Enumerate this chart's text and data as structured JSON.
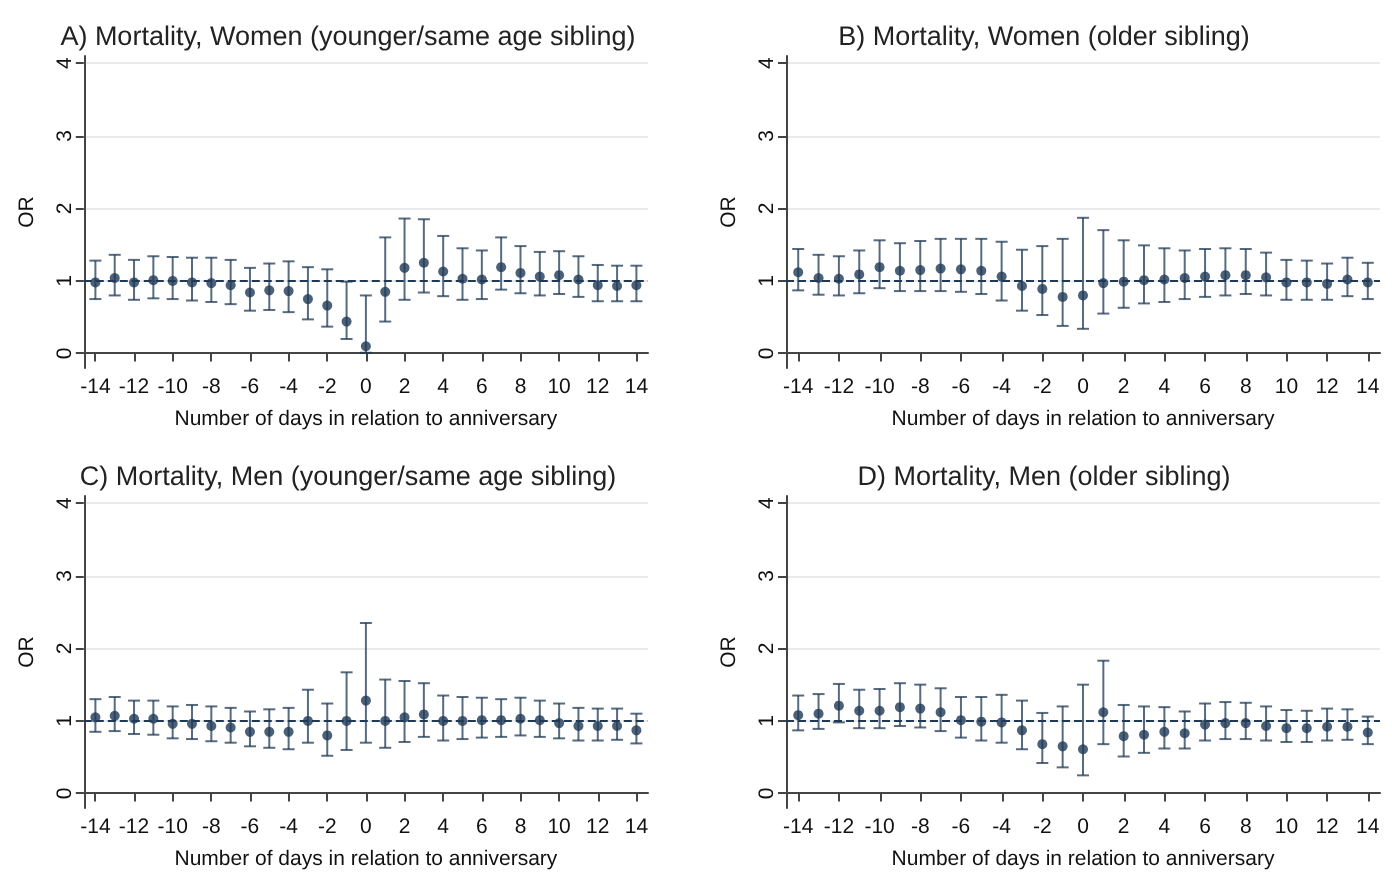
{
  "chart_data": [
    {
      "type": "scatter",
      "title": "A) Mortality, Women (younger/same age sibling)",
      "xlabel": "Number of days in relation to anniversary",
      "ylabel": "OR",
      "x": [
        -14,
        -13,
        -12,
        -11,
        -10,
        -9,
        -8,
        -7,
        -6,
        -5,
        -4,
        -3,
        -2,
        -1,
        0,
        1,
        2,
        3,
        4,
        5,
        6,
        7,
        8,
        9,
        10,
        11,
        12,
        13,
        14
      ],
      "values": [
        0.98,
        1.04,
        0.98,
        1.01,
        1.0,
        0.98,
        0.97,
        0.94,
        0.84,
        0.87,
        0.86,
        0.75,
        0.66,
        0.44,
        0.1,
        0.85,
        1.18,
        1.25,
        1.13,
        1.03,
        1.02,
        1.19,
        1.11,
        1.06,
        1.08,
        1.02,
        0.94,
        0.93,
        0.94
      ],
      "errors": [
        [
          0.75,
          1.28
        ],
        [
          0.8,
          1.36
        ],
        [
          0.74,
          1.29
        ],
        [
          0.76,
          1.34
        ],
        [
          0.75,
          1.33
        ],
        [
          0.73,
          1.32
        ],
        [
          0.71,
          1.32
        ],
        [
          0.68,
          1.29
        ],
        [
          0.59,
          1.18
        ],
        [
          0.6,
          1.24
        ],
        [
          0.57,
          1.27
        ],
        [
          0.47,
          1.19
        ],
        [
          0.37,
          1.16
        ],
        [
          0.2,
          0.99
        ],
        [
          0.01,
          0.8
        ],
        [
          0.44,
          1.6
        ],
        [
          0.74,
          1.86
        ],
        [
          0.84,
          1.85
        ],
        [
          0.79,
          1.62
        ],
        [
          0.74,
          1.45
        ],
        [
          0.75,
          1.42
        ],
        [
          0.88,
          1.6
        ],
        [
          0.83,
          1.48
        ],
        [
          0.8,
          1.4
        ],
        [
          0.82,
          1.41
        ],
        [
          0.78,
          1.34
        ],
        [
          0.72,
          1.22
        ],
        [
          0.72,
          1.21
        ],
        [
          0.72,
          1.21
        ]
      ],
      "color": "#1f3a56",
      "xlim": [
        -14.6,
        14.6
      ],
      "xticks": [
        -14,
        -12,
        -10,
        -8,
        -6,
        -4,
        -2,
        0,
        2,
        4,
        6,
        8,
        10,
        12,
        14
      ],
      "ylim": [
        -0.2,
        4.1
      ],
      "yticks": [
        0,
        1,
        2,
        3,
        4
      ],
      "grid": "y",
      "marker": "circle",
      "ref_lines": [
        {
          "axis": "y",
          "value": 1,
          "line_style": "dashed"
        }
      ]
    },
    {
      "type": "scatter",
      "title": "B) Mortality, Women (older sibling)",
      "xlabel": "Number of days in relation to anniversary",
      "ylabel": "OR",
      "x": [
        -14,
        -13,
        -12,
        -11,
        -10,
        -9,
        -8,
        -7,
        -6,
        -5,
        -4,
        -3,
        -2,
        -1,
        0,
        1,
        2,
        3,
        4,
        5,
        6,
        7,
        8,
        9,
        10,
        11,
        12,
        13,
        14
      ],
      "values": [
        1.12,
        1.04,
        1.03,
        1.09,
        1.19,
        1.14,
        1.15,
        1.17,
        1.16,
        1.14,
        1.06,
        0.93,
        0.89,
        0.78,
        0.8,
        0.97,
        0.99,
        1.01,
        1.02,
        1.04,
        1.06,
        1.08,
        1.08,
        1.05,
        0.98,
        0.98,
        0.96,
        1.02,
        0.98
      ],
      "errors": [
        [
          0.87,
          1.44
        ],
        [
          0.81,
          1.36
        ],
        [
          0.8,
          1.34
        ],
        [
          0.83,
          1.42
        ],
        [
          0.9,
          1.56
        ],
        [
          0.86,
          1.52
        ],
        [
          0.86,
          1.55
        ],
        [
          0.86,
          1.58
        ],
        [
          0.85,
          1.58
        ],
        [
          0.82,
          1.58
        ],
        [
          0.73,
          1.54
        ],
        [
          0.59,
          1.43
        ],
        [
          0.53,
          1.48
        ],
        [
          0.38,
          1.58
        ],
        [
          0.34,
          1.87
        ],
        [
          0.55,
          1.7
        ],
        [
          0.63,
          1.56
        ],
        [
          0.69,
          1.49
        ],
        [
          0.71,
          1.45
        ],
        [
          0.75,
          1.42
        ],
        [
          0.78,
          1.44
        ],
        [
          0.8,
          1.45
        ],
        [
          0.82,
          1.44
        ],
        [
          0.8,
          1.39
        ],
        [
          0.74,
          1.29
        ],
        [
          0.74,
          1.28
        ],
        [
          0.74,
          1.24
        ],
        [
          0.79,
          1.32
        ],
        [
          0.75,
          1.25
        ]
      ],
      "color": "#1f3a56",
      "xlim": [
        -14.6,
        14.6
      ],
      "xticks": [
        -14,
        -12,
        -10,
        -8,
        -6,
        -4,
        -2,
        0,
        2,
        4,
        6,
        8,
        10,
        12,
        14
      ],
      "ylim": [
        -0.2,
        4.1
      ],
      "yticks": [
        0,
        1,
        2,
        3,
        4
      ],
      "grid": "y",
      "marker": "circle",
      "ref_lines": [
        {
          "axis": "y",
          "value": 1,
          "line_style": "dashed"
        }
      ]
    },
    {
      "type": "scatter",
      "title": "C) Mortality, Men (younger/same age sibling)",
      "xlabel": "Number of days in relation to anniversary",
      "ylabel": "OR",
      "x": [
        -14,
        -13,
        -12,
        -11,
        -10,
        -9,
        -8,
        -7,
        -6,
        -5,
        -4,
        -3,
        -2,
        -1,
        0,
        1,
        2,
        3,
        4,
        5,
        6,
        7,
        8,
        9,
        10,
        11,
        12,
        13,
        14
      ],
      "values": [
        1.05,
        1.07,
        1.03,
        1.03,
        0.96,
        0.96,
        0.93,
        0.91,
        0.85,
        0.85,
        0.85,
        1.0,
        0.8,
        1.0,
        1.28,
        1.0,
        1.05,
        1.09,
        1.0,
        1.0,
        1.01,
        1.01,
        1.03,
        1.01,
        0.97,
        0.93,
        0.93,
        0.93,
        0.87
      ],
      "errors": [
        [
          0.85,
          1.3
        ],
        [
          0.86,
          1.33
        ],
        [
          0.82,
          1.28
        ],
        [
          0.81,
          1.28
        ],
        [
          0.76,
          1.2
        ],
        [
          0.75,
          1.22
        ],
        [
          0.72,
          1.2
        ],
        [
          0.7,
          1.18
        ],
        [
          0.65,
          1.13
        ],
        [
          0.63,
          1.16
        ],
        [
          0.61,
          1.18
        ],
        [
          0.7,
          1.43
        ],
        [
          0.52,
          1.24
        ],
        [
          0.6,
          1.67
        ],
        [
          0.7,
          2.35
        ],
        [
          0.63,
          1.57
        ],
        [
          0.71,
          1.55
        ],
        [
          0.78,
          1.52
        ],
        [
          0.73,
          1.35
        ],
        [
          0.75,
          1.33
        ],
        [
          0.77,
          1.32
        ],
        [
          0.78,
          1.3
        ],
        [
          0.8,
          1.32
        ],
        [
          0.78,
          1.28
        ],
        [
          0.76,
          1.24
        ],
        [
          0.73,
          1.18
        ],
        [
          0.73,
          1.17
        ],
        [
          0.74,
          1.17
        ],
        [
          0.69,
          1.1
        ]
      ],
      "color": "#1f3a56",
      "xlim": [
        -14.6,
        14.6
      ],
      "xticks": [
        -14,
        -12,
        -10,
        -8,
        -6,
        -4,
        -2,
        0,
        2,
        4,
        6,
        8,
        10,
        12,
        14
      ],
      "ylim": [
        -0.2,
        4.1
      ],
      "yticks": [
        0,
        1,
        2,
        3,
        4
      ],
      "grid": "y",
      "marker": "circle",
      "ref_lines": [
        {
          "axis": "y",
          "value": 1,
          "line_style": "dashed"
        }
      ]
    },
    {
      "type": "scatter",
      "title": "D) Mortality, Men (older sibling)",
      "xlabel": "Number of days in relation to anniversary",
      "ylabel": "OR",
      "x": [
        -14,
        -13,
        -12,
        -11,
        -10,
        -9,
        -8,
        -7,
        -6,
        -5,
        -4,
        -3,
        -2,
        -1,
        0,
        1,
        2,
        3,
        4,
        5,
        6,
        7,
        8,
        9,
        10,
        11,
        12,
        13,
        14
      ],
      "values": [
        1.08,
        1.1,
        1.21,
        1.14,
        1.14,
        1.19,
        1.17,
        1.12,
        1.01,
        0.99,
        0.98,
        0.87,
        0.68,
        0.65,
        0.61,
        1.12,
        0.79,
        0.81,
        0.85,
        0.83,
        0.95,
        0.97,
        0.97,
        0.93,
        0.9,
        0.9,
        0.92,
        0.92,
        0.84
      ],
      "errors": [
        [
          0.87,
          1.35
        ],
        [
          0.89,
          1.37
        ],
        [
          0.98,
          1.51
        ],
        [
          0.9,
          1.43
        ],
        [
          0.9,
          1.44
        ],
        [
          0.93,
          1.52
        ],
        [
          0.91,
          1.5
        ],
        [
          0.86,
          1.45
        ],
        [
          0.77,
          1.33
        ],
        [
          0.73,
          1.33
        ],
        [
          0.7,
          1.36
        ],
        [
          0.61,
          1.28
        ],
        [
          0.42,
          1.11
        ],
        [
          0.36,
          1.2
        ],
        [
          0.25,
          1.5
        ],
        [
          0.68,
          1.83
        ],
        [
          0.51,
          1.22
        ],
        [
          0.56,
          1.2
        ],
        [
          0.62,
          1.19
        ],
        [
          0.62,
          1.13
        ],
        [
          0.73,
          1.24
        ],
        [
          0.75,
          1.26
        ],
        [
          0.75,
          1.25
        ],
        [
          0.73,
          1.2
        ],
        [
          0.71,
          1.15
        ],
        [
          0.71,
          1.14
        ],
        [
          0.73,
          1.17
        ],
        [
          0.74,
          1.16
        ],
        [
          0.68,
          1.06
        ]
      ],
      "color": "#1f3a56",
      "xlim": [
        -14.6,
        14.6
      ],
      "xticks": [
        -14,
        -12,
        -10,
        -8,
        -6,
        -4,
        -2,
        0,
        2,
        4,
        6,
        8,
        10,
        12,
        14
      ],
      "ylim": [
        -0.2,
        4.1
      ],
      "yticks": [
        0,
        1,
        2,
        3,
        4
      ],
      "grid": "y",
      "marker": "circle",
      "ref_lines": [
        {
          "axis": "y",
          "value": 1,
          "line_style": "dashed"
        }
      ]
    }
  ]
}
